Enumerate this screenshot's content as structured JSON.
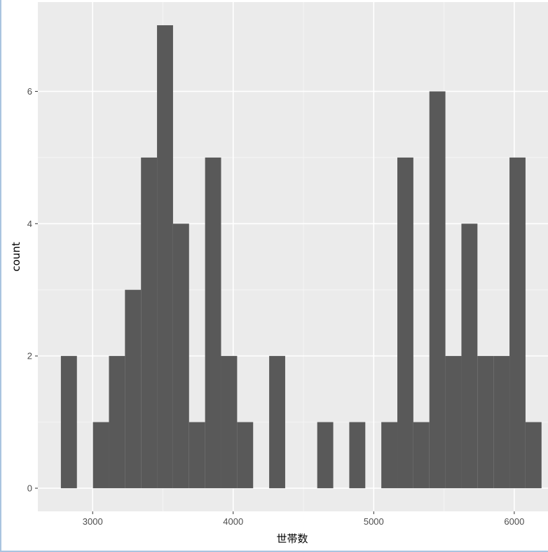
{
  "chart_data": {
    "type": "bar",
    "subtype": "histogram",
    "xlabel": "世帯数",
    "ylabel": "count",
    "xlim": [
      2610,
      6250
    ],
    "ylim": [
      -0.35,
      7.35
    ],
    "x_ticks": [
      3000,
      4000,
      5000,
      6000
    ],
    "x_tick_labels": [
      "3000",
      "4000",
      "5000",
      "6000"
    ],
    "y_ticks": [
      0,
      2,
      4,
      6
    ],
    "y_tick_labels": [
      "0",
      "2",
      "4",
      "6"
    ],
    "grid": true,
    "legend": "none",
    "bin_width": 114,
    "bins": [
      {
        "xmin": 2774,
        "xmax": 2888,
        "count": 2
      },
      {
        "xmin": 2888,
        "xmax": 3002,
        "count": 0
      },
      {
        "xmin": 3002,
        "xmax": 3116,
        "count": 1
      },
      {
        "xmin": 3116,
        "xmax": 3230,
        "count": 2
      },
      {
        "xmin": 3230,
        "xmax": 3344,
        "count": 3
      },
      {
        "xmin": 3344,
        "xmax": 3458,
        "count": 5
      },
      {
        "xmin": 3458,
        "xmax": 3572,
        "count": 7
      },
      {
        "xmin": 3572,
        "xmax": 3686,
        "count": 4
      },
      {
        "xmin": 3686,
        "xmax": 3800,
        "count": 1
      },
      {
        "xmin": 3800,
        "xmax": 3914,
        "count": 5
      },
      {
        "xmin": 3914,
        "xmax": 4028,
        "count": 2
      },
      {
        "xmin": 4028,
        "xmax": 4142,
        "count": 1
      },
      {
        "xmin": 4142,
        "xmax": 4256,
        "count": 0
      },
      {
        "xmin": 4256,
        "xmax": 4370,
        "count": 2
      },
      {
        "xmin": 4370,
        "xmax": 4484,
        "count": 0
      },
      {
        "xmin": 4484,
        "xmax": 4598,
        "count": 0
      },
      {
        "xmin": 4598,
        "xmax": 4712,
        "count": 1
      },
      {
        "xmin": 4712,
        "xmax": 4826,
        "count": 0
      },
      {
        "xmin": 4826,
        "xmax": 4940,
        "count": 1
      },
      {
        "xmin": 4940,
        "xmax": 5054,
        "count": 0
      },
      {
        "xmin": 5054,
        "xmax": 5168,
        "count": 1
      },
      {
        "xmin": 5168,
        "xmax": 5282,
        "count": 5
      },
      {
        "xmin": 5282,
        "xmax": 5396,
        "count": 1
      },
      {
        "xmin": 5396,
        "xmax": 5510,
        "count": 6
      },
      {
        "xmin": 5510,
        "xmax": 5624,
        "count": 2
      },
      {
        "xmin": 5624,
        "xmax": 5738,
        "count": 4
      },
      {
        "xmin": 5738,
        "xmax": 5852,
        "count": 2
      },
      {
        "xmin": 5852,
        "xmax": 5966,
        "count": 2
      },
      {
        "xmin": 5966,
        "xmax": 6080,
        "count": 5
      },
      {
        "xmin": 6080,
        "xmax": 6194,
        "count": 1
      }
    ],
    "colors": {
      "panel_background": "#ebebeb",
      "grid_major": "#ffffff",
      "grid_minor": "#f5f5f5",
      "bar_fill": "#595959",
      "tick_text": "#4d4d4d",
      "axis_title": "#000000"
    }
  }
}
